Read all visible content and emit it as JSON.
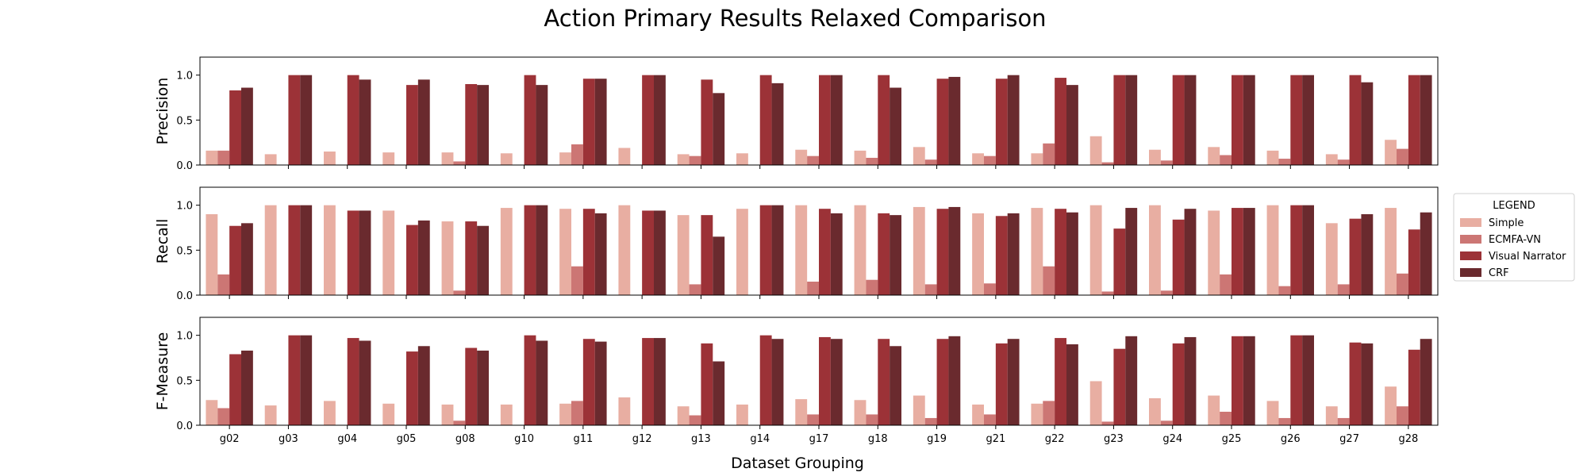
{
  "chart_data": {
    "type": "bar",
    "title": "Action Primary Results Relaxed Comparison",
    "xlabel": "Dataset Grouping",
    "categories": [
      "g02",
      "g03",
      "g04",
      "g05",
      "g08",
      "g10",
      "g11",
      "g12",
      "g13",
      "g14",
      "g17",
      "g18",
      "g19",
      "g21",
      "g22",
      "g23",
      "g24",
      "g25",
      "g26",
      "g27",
      "g28"
    ],
    "legend": {
      "title": "LEGEND",
      "placement": "right",
      "entries": [
        "Simple",
        "ECMFA-VN",
        "Visual Narrator",
        "CRF"
      ]
    },
    "colors": {
      "Simple": "#e8aea2",
      "ECMFA-VN": "#cc7674",
      "Visual Narrator": "#9c3237",
      "CRF": "#6a2a2e"
    },
    "subplots": [
      {
        "ylabel": "Precision",
        "ylim": [
          0,
          1.2
        ],
        "yticks": [
          "0.0",
          "0.5",
          "1.0"
        ],
        "series": [
          {
            "name": "Simple",
            "values": [
              0.16,
              0.12,
              0.15,
              0.14,
              0.14,
              0.13,
              0.14,
              0.19,
              0.12,
              0.13,
              0.17,
              0.16,
              0.2,
              0.13,
              0.13,
              0.32,
              0.17,
              0.2,
              0.16,
              0.12,
              0.28
            ]
          },
          {
            "name": "ECMFA-VN",
            "values": [
              0.16,
              0,
              0,
              0,
              0.04,
              0,
              0.23,
              0,
              0.1,
              0,
              0.1,
              0.08,
              0.06,
              0.1,
              0.24,
              0.03,
              0.05,
              0.11,
              0.07,
              0.06,
              0.18
            ]
          },
          {
            "name": "Visual Narrator",
            "values": [
              0.83,
              1.0,
              1.0,
              0.89,
              0.9,
              1.0,
              0.96,
              1.0,
              0.95,
              1.0,
              1.0,
              1.0,
              0.96,
              0.96,
              0.97,
              1.0,
              1.0,
              1.0,
              1.0,
              1.0,
              1.0
            ]
          },
          {
            "name": "CRF",
            "values": [
              0.86,
              1.0,
              0.95,
              0.95,
              0.89,
              0.89,
              0.96,
              1.0,
              0.8,
              0.91,
              1.0,
              0.86,
              0.98,
              1.0,
              0.89,
              1.0,
              1.0,
              1.0,
              1.0,
              0.92,
              1.0
            ]
          }
        ]
      },
      {
        "ylabel": "Recall",
        "ylim": [
          0,
          1.2
        ],
        "yticks": [
          "0.0",
          "0.5",
          "1.0"
        ],
        "series": [
          {
            "name": "Simple",
            "values": [
              0.9,
              1.0,
              1.0,
              0.94,
              0.82,
              0.97,
              0.96,
              1.0,
              0.89,
              0.96,
              1.0,
              1.0,
              0.98,
              0.91,
              0.97,
              1.0,
              1.0,
              0.94,
              1.0,
              0.8,
              0.97
            ]
          },
          {
            "name": "ECMFA-VN",
            "values": [
              0.23,
              0,
              0,
              0,
              0.05,
              0,
              0.32,
              0,
              0.12,
              0,
              0.15,
              0.17,
              0.12,
              0.13,
              0.32,
              0.04,
              0.05,
              0.23,
              0.1,
              0.12,
              0.24
            ]
          },
          {
            "name": "Visual Narrator",
            "values": [
              0.77,
              1.0,
              0.94,
              0.78,
              0.82,
              1.0,
              0.96,
              0.94,
              0.89,
              1.0,
              0.96,
              0.91,
              0.96,
              0.88,
              0.96,
              0.74,
              0.84,
              0.97,
              1.0,
              0.85,
              0.73
            ]
          },
          {
            "name": "CRF",
            "values": [
              0.8,
              1.0,
              0.94,
              0.83,
              0.77,
              1.0,
              0.91,
              0.94,
              0.65,
              1.0,
              0.91,
              0.89,
              0.98,
              0.91,
              0.92,
              0.97,
              0.96,
              0.97,
              1.0,
              0.9,
              0.92
            ]
          }
        ]
      },
      {
        "ylabel": "F-Measure",
        "ylim": [
          0,
          1.2
        ],
        "yticks": [
          "0.0",
          "0.5",
          "1.0"
        ],
        "series": [
          {
            "name": "Simple",
            "values": [
              0.28,
              0.22,
              0.27,
              0.24,
              0.23,
              0.23,
              0.24,
              0.31,
              0.21,
              0.23,
              0.29,
              0.28,
              0.33,
              0.23,
              0.24,
              0.49,
              0.3,
              0.33,
              0.27,
              0.21,
              0.43
            ]
          },
          {
            "name": "ECMFA-VN",
            "values": [
              0.19,
              0,
              0,
              0,
              0.05,
              0,
              0.27,
              0,
              0.11,
              0,
              0.12,
              0.12,
              0.08,
              0.12,
              0.27,
              0.04,
              0.05,
              0.15,
              0.08,
              0.08,
              0.21
            ]
          },
          {
            "name": "Visual Narrator",
            "values": [
              0.79,
              1.0,
              0.97,
              0.82,
              0.86,
              1.0,
              0.96,
              0.97,
              0.91,
              1.0,
              0.98,
              0.96,
              0.96,
              0.91,
              0.97,
              0.85,
              0.91,
              0.99,
              1.0,
              0.92,
              0.84
            ]
          },
          {
            "name": "CRF",
            "values": [
              0.83,
              1.0,
              0.94,
              0.88,
              0.83,
              0.94,
              0.93,
              0.97,
              0.71,
              0.96,
              0.96,
              0.88,
              0.99,
              0.96,
              0.9,
              0.99,
              0.98,
              0.99,
              1.0,
              0.91,
              0.96
            ]
          }
        ]
      }
    ]
  }
}
